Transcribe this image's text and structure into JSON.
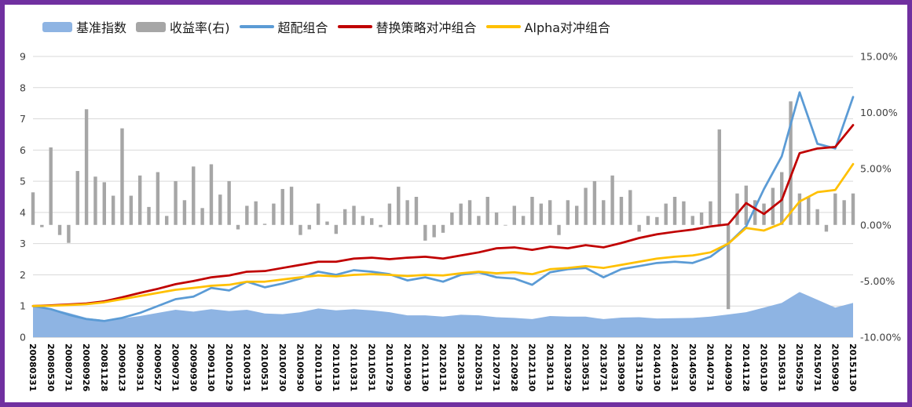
{
  "legend": {
    "items": [
      {
        "label": "基准指数",
        "type": "area",
        "color": "#8EB4E3"
      },
      {
        "label": "收益率(右)",
        "type": "bar",
        "color": "#A6A6A6"
      },
      {
        "label": "超配组合",
        "type": "line",
        "color": "#5B9BD5"
      },
      {
        "label": "替换策略对冲组合",
        "type": "line",
        "color": "#C00000"
      },
      {
        "label": "Alpha对冲组合",
        "type": "line",
        "color": "#FFC000"
      }
    ]
  },
  "axes": {
    "left_ticks": [
      "9",
      "8",
      "7",
      "6",
      "5",
      "4",
      "3",
      "2",
      "1",
      "0"
    ],
    "right_ticks": [
      "15.00%",
      "10.00%",
      "5.00%",
      "0.00%",
      "-5.00%",
      "-10.00%"
    ]
  },
  "colors": {
    "frame": "#7030A0",
    "grid": "#D9D9D9",
    "axis_line": "#BFBFBF",
    "background": "#FFFFFF"
  },
  "chart_data": {
    "type": "combo",
    "left_axis_range": [
      0,
      9
    ],
    "right_axis_range": [
      -10,
      15
    ],
    "categories": [
      "20080331",
      "20080530",
      "20080731",
      "20080926",
      "20081128",
      "20090123",
      "20090331",
      "20090527",
      "20090731",
      "20090930",
      "20091130",
      "20100129",
      "20100331",
      "20100531",
      "20100730",
      "20100930",
      "20101130",
      "20110131",
      "20110331",
      "20110531",
      "20110729",
      "20110930",
      "20111130",
      "20120131",
      "20120330",
      "20120531",
      "20120731",
      "20120928",
      "20121130",
      "20130131",
      "20130329",
      "20130531",
      "20130731",
      "20130930",
      "20131129",
      "20140130",
      "20140331",
      "20140530",
      "20140731",
      "20140930",
      "20141128",
      "20150130",
      "20150331",
      "20150529",
      "20150731",
      "20150930",
      "20151130"
    ],
    "series": [
      {
        "name": "基准指数",
        "type": "area",
        "axis": "left",
        "color": "#8EB4E3",
        "values": [
          1.0,
          0.92,
          0.78,
          0.62,
          0.55,
          0.6,
          0.68,
          0.78,
          0.88,
          0.82,
          0.9,
          0.84,
          0.88,
          0.76,
          0.74,
          0.8,
          0.92,
          0.86,
          0.9,
          0.86,
          0.8,
          0.7,
          0.7,
          0.66,
          0.72,
          0.7,
          0.64,
          0.62,
          0.58,
          0.68,
          0.66,
          0.66,
          0.58,
          0.63,
          0.64,
          0.6,
          0.61,
          0.62,
          0.66,
          0.73,
          0.8,
          0.95,
          1.1,
          1.45,
          1.2,
          0.95,
          1.1
        ]
      },
      {
        "name": "收益率(右)",
        "type": "bar",
        "axis": "right",
        "color": "#A6A6A6",
        "frequency": "monthly",
        "values_pct": [
          2.9,
          -0.2,
          6.9,
          -0.9,
          -1.6,
          4.8,
          10.3,
          4.3,
          3.8,
          2.6,
          8.6,
          2.6,
          4.4,
          1.6,
          4.7,
          0.8,
          3.9,
          2.2,
          5.2,
          1.5,
          5.4,
          2.7,
          3.9,
          -0.4,
          1.7,
          2.1,
          0.1,
          1.9,
          3.2,
          3.4,
          -0.9,
          -0.4,
          1.9,
          0.3,
          -0.8,
          1.4,
          1.7,
          0.8,
          0.6,
          -0.2,
          1.9,
          3.4,
          2.2,
          2.5,
          -1.4,
          -1.1,
          -0.7,
          1.1,
          1.9,
          2.2,
          0.8,
          2.5,
          1.1,
          0.0,
          1.7,
          0.8,
          2.5,
          1.9,
          2.2,
          -0.9,
          2.2,
          1.7,
          3.3,
          3.9,
          2.2,
          4.4,
          2.5,
          3.1,
          -0.6,
          0.8,
          0.7,
          1.9,
          2.5,
          2.1,
          0.8,
          1.1,
          2.1,
          8.5,
          -7.5,
          2.8,
          3.5,
          2.2,
          1.9,
          3.3,
          4.7,
          11.0,
          2.8,
          2.5,
          1.4,
          -0.6,
          2.8,
          2.2,
          2.8
        ]
      },
      {
        "name": "超配组合",
        "type": "line",
        "axis": "left",
        "color": "#5B9BD5",
        "values": [
          1.0,
          0.9,
          0.72,
          0.58,
          0.52,
          0.62,
          0.78,
          1.0,
          1.22,
          1.3,
          1.58,
          1.5,
          1.78,
          1.6,
          1.72,
          1.88,
          2.1,
          2.0,
          2.15,
          2.1,
          2.02,
          1.82,
          1.92,
          1.78,
          2.0,
          2.08,
          1.92,
          1.88,
          1.68,
          2.08,
          2.18,
          2.22,
          1.92,
          2.18,
          2.28,
          2.38,
          2.42,
          2.38,
          2.58,
          3.0,
          3.55,
          4.75,
          5.8,
          7.85,
          6.2,
          6.05,
          7.7
        ]
      },
      {
        "name": "替换策略对冲组合",
        "type": "line",
        "axis": "left",
        "color": "#C00000",
        "values": [
          1.0,
          1.02,
          1.05,
          1.08,
          1.15,
          1.28,
          1.42,
          1.55,
          1.7,
          1.8,
          1.92,
          1.98,
          2.1,
          2.12,
          2.22,
          2.32,
          2.42,
          2.42,
          2.52,
          2.55,
          2.5,
          2.55,
          2.58,
          2.52,
          2.62,
          2.72,
          2.85,
          2.88,
          2.8,
          2.9,
          2.85,
          2.95,
          2.88,
          3.02,
          3.18,
          3.3,
          3.38,
          3.45,
          3.55,
          3.62,
          4.3,
          3.95,
          4.4,
          5.9,
          6.05,
          6.1,
          6.8
        ]
      },
      {
        "name": "Alpha对冲组合",
        "type": "line",
        "axis": "left",
        "color": "#FFC000",
        "values": [
          1.0,
          1.01,
          1.03,
          1.06,
          1.12,
          1.22,
          1.32,
          1.42,
          1.52,
          1.58,
          1.65,
          1.68,
          1.78,
          1.78,
          1.85,
          1.92,
          1.98,
          1.95,
          2.0,
          2.02,
          2.0,
          1.96,
          2.0,
          1.98,
          2.05,
          2.1,
          2.05,
          2.08,
          2.02,
          2.18,
          2.22,
          2.28,
          2.22,
          2.32,
          2.42,
          2.52,
          2.58,
          2.62,
          2.72,
          3.0,
          3.5,
          3.42,
          3.65,
          4.35,
          4.65,
          4.72,
          5.55
        ]
      }
    ]
  }
}
